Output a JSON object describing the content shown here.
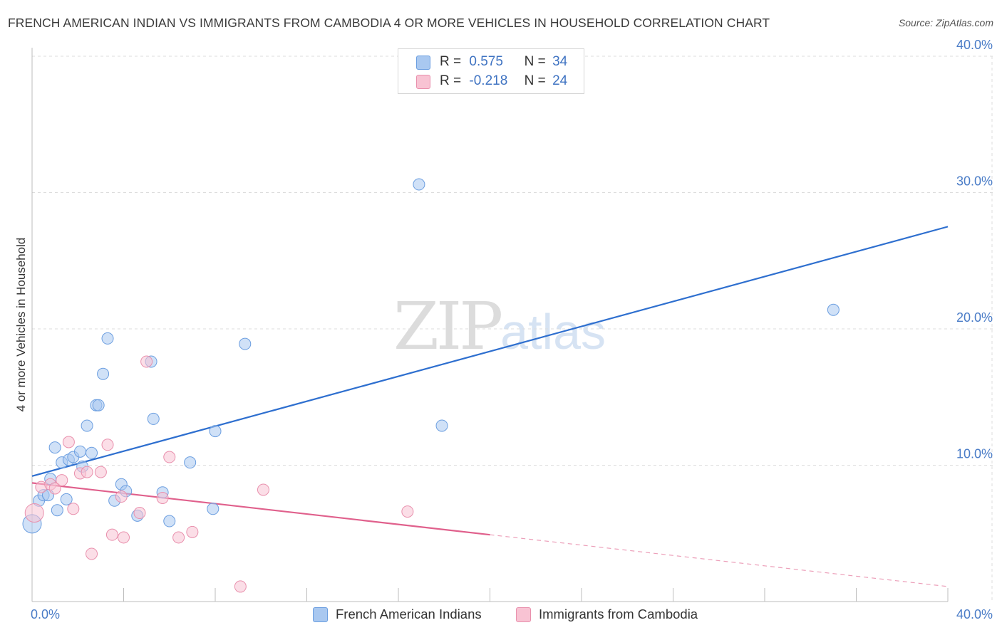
{
  "title": "FRENCH AMERICAN INDIAN VS IMMIGRANTS FROM CAMBODIA 4 OR MORE VEHICLES IN HOUSEHOLD CORRELATION CHART",
  "source": "Source: ZipAtlas.com",
  "watermark": {
    "zip": "ZIP",
    "atlas": "atlas"
  },
  "legend": {
    "r_label": "R =",
    "n_label": "N =",
    "rows": [
      {
        "r": "0.575",
        "n": "34",
        "color": "#a9c8f0",
        "border": "#6b9ee0"
      },
      {
        "r": "-0.218",
        "n": "24",
        "color": "#f8c3d3",
        "border": "#e990ad"
      }
    ]
  },
  "chart_data": {
    "type": "scatter",
    "title": "FRENCH AMERICAN INDIAN VS IMMIGRANTS FROM CAMBODIA 4 OR MORE VEHICLES IN HOUSEHOLD CORRELATION CHART",
    "xlabel": "",
    "ylabel": "4 or more Vehicles in Household",
    "xlim": [
      0,
      40
    ],
    "ylim": [
      0,
      40
    ],
    "x_tick_labels": [
      "0.0%",
      "40.0%"
    ],
    "y_ticks": [
      10,
      20,
      30,
      40
    ],
    "y_tick_labels": [
      "10.0%",
      "20.0%",
      "30.0%",
      "40.0%"
    ],
    "grid": true,
    "series": [
      {
        "name": "French American Indians",
        "color": "#6b9ee0",
        "fill": "#a9c8f0",
        "trend": {
          "x": [
            0,
            40
          ],
          "y": [
            9.2,
            27.5
          ],
          "color": "#2e6fcf"
        },
        "points": [
          {
            "x": 0.0,
            "y": 5.7,
            "s": 13
          },
          {
            "x": 0.3,
            "y": 7.4,
            "s": 8
          },
          {
            "x": 0.5,
            "y": 7.8,
            "s": 8
          },
          {
            "x": 0.7,
            "y": 7.8,
            "s": 8
          },
          {
            "x": 0.8,
            "y": 9.0,
            "s": 8
          },
          {
            "x": 1.0,
            "y": 11.3,
            "s": 8
          },
          {
            "x": 1.1,
            "y": 6.7,
            "s": 8
          },
          {
            "x": 1.3,
            "y": 10.2,
            "s": 8
          },
          {
            "x": 1.5,
            "y": 7.5,
            "s": 8
          },
          {
            "x": 1.6,
            "y": 10.4,
            "s": 8
          },
          {
            "x": 1.8,
            "y": 10.6,
            "s": 8
          },
          {
            "x": 2.1,
            "y": 11.0,
            "s": 8
          },
          {
            "x": 2.2,
            "y": 9.9,
            "s": 8
          },
          {
            "x": 2.4,
            "y": 12.9,
            "s": 8
          },
          {
            "x": 2.6,
            "y": 10.9,
            "s": 8
          },
          {
            "x": 2.8,
            "y": 14.4,
            "s": 8
          },
          {
            "x": 2.9,
            "y": 14.4,
            "s": 8
          },
          {
            "x": 3.1,
            "y": 16.7,
            "s": 8
          },
          {
            "x": 3.3,
            "y": 19.3,
            "s": 8
          },
          {
            "x": 3.6,
            "y": 7.4,
            "s": 8
          },
          {
            "x": 3.9,
            "y": 8.6,
            "s": 8
          },
          {
            "x": 4.1,
            "y": 8.1,
            "s": 8
          },
          {
            "x": 4.6,
            "y": 6.3,
            "s": 8
          },
          {
            "x": 5.2,
            "y": 17.6,
            "s": 8
          },
          {
            "x": 5.3,
            "y": 13.4,
            "s": 8
          },
          {
            "x": 5.7,
            "y": 8.0,
            "s": 8
          },
          {
            "x": 6.0,
            "y": 5.9,
            "s": 8
          },
          {
            "x": 6.9,
            "y": 10.2,
            "s": 8
          },
          {
            "x": 7.9,
            "y": 6.8,
            "s": 8
          },
          {
            "x": 8.0,
            "y": 12.5,
            "s": 8
          },
          {
            "x": 9.3,
            "y": 18.9,
            "s": 8
          },
          {
            "x": 16.9,
            "y": 30.6,
            "s": 8
          },
          {
            "x": 17.9,
            "y": 12.9,
            "s": 8
          },
          {
            "x": 35.0,
            "y": 21.4,
            "s": 8
          }
        ]
      },
      {
        "name": "Immigrants from Cambodia",
        "color": "#e990ad",
        "fill": "#f8c3d3",
        "trend": {
          "x": [
            0,
            20
          ],
          "y": [
            8.7,
            4.9
          ],
          "color": "#e0608c",
          "dashed_extension": {
            "x": [
              20,
              40
            ],
            "y": [
              4.9,
              1.1
            ]
          }
        },
        "points": [
          {
            "x": 0.1,
            "y": 6.5,
            "s": 13
          },
          {
            "x": 0.4,
            "y": 8.4,
            "s": 8
          },
          {
            "x": 0.8,
            "y": 8.6,
            "s": 8
          },
          {
            "x": 1.0,
            "y": 8.3,
            "s": 8
          },
          {
            "x": 1.3,
            "y": 8.9,
            "s": 8
          },
          {
            "x": 1.6,
            "y": 11.7,
            "s": 8
          },
          {
            "x": 1.8,
            "y": 6.8,
            "s": 8
          },
          {
            "x": 2.1,
            "y": 9.4,
            "s": 8
          },
          {
            "x": 2.4,
            "y": 9.5,
            "s": 8
          },
          {
            "x": 2.6,
            "y": 3.5,
            "s": 8
          },
          {
            "x": 3.0,
            "y": 9.5,
            "s": 8
          },
          {
            "x": 3.3,
            "y": 11.5,
            "s": 8
          },
          {
            "x": 3.5,
            "y": 4.9,
            "s": 8
          },
          {
            "x": 3.9,
            "y": 7.7,
            "s": 8
          },
          {
            "x": 4.0,
            "y": 4.7,
            "s": 8
          },
          {
            "x": 4.7,
            "y": 6.5,
            "s": 8
          },
          {
            "x": 5.0,
            "y": 17.6,
            "s": 8
          },
          {
            "x": 5.7,
            "y": 7.6,
            "s": 8
          },
          {
            "x": 6.0,
            "y": 10.6,
            "s": 8
          },
          {
            "x": 6.4,
            "y": 4.7,
            "s": 8
          },
          {
            "x": 7.0,
            "y": 5.1,
            "s": 8
          },
          {
            "x": 9.1,
            "y": 1.1,
            "s": 8
          },
          {
            "x": 10.1,
            "y": 8.2,
            "s": 8
          },
          {
            "x": 16.4,
            "y": 6.6,
            "s": 8
          }
        ]
      }
    ]
  }
}
